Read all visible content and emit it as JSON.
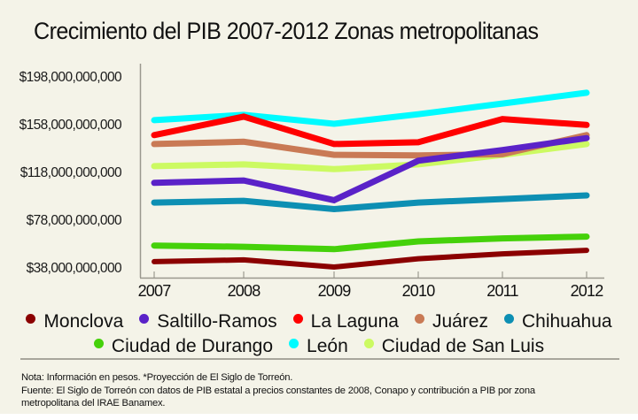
{
  "title": "Crecimiento del PIB 2007-2012  Zonas metropolitanas",
  "chart_data": {
    "type": "line",
    "title": "Crecimiento del PIB 2007-2012  Zonas metropolitanas",
    "xlabel": "",
    "ylabel": "",
    "x": [
      "2007",
      "2008",
      "2009",
      "2010",
      "2011",
      "2012"
    ],
    "yticks": [
      38000000000,
      78000000000,
      118000000000,
      158000000000,
      198000000000
    ],
    "ytick_labels": [
      "$38,000,000,000",
      "$78,000,000,000",
      "$118,000,000,000",
      "$158,000,000,000",
      "$198,000,000,000"
    ],
    "ylim": [
      36000000000,
      210000000000
    ],
    "grid": false,
    "legend_position": "bottom",
    "series": [
      {
        "name": "Monclova",
        "color": "#8b0000",
        "values": [
          42500000000,
          44000000000,
          38000000000,
          45000000000,
          49000000000,
          52000000000
        ]
      },
      {
        "name": "Saltillo-Ramos",
        "color": "#5a22c8",
        "values": [
          108500000000,
          110500000000,
          94000000000,
          127000000000,
          136000000000,
          146000000000
        ]
      },
      {
        "name": "La Laguna",
        "color": "#ff0000",
        "values": [
          148500000000,
          164000000000,
          141000000000,
          142500000000,
          162000000000,
          157000000000
        ]
      },
      {
        "name": "Juárez",
        "color": "#c97a55",
        "values": [
          141000000000,
          143000000000,
          132000000000,
          131500000000,
          132500000000,
          148500000000
        ]
      },
      {
        "name": "Chihuahua",
        "color": "#0d8fb3",
        "values": [
          92000000000,
          93500000000,
          86500000000,
          92000000000,
          95000000000,
          98000000000
        ]
      },
      {
        "name": "Ciudad de Durango",
        "color": "#45d10a",
        "values": [
          56000000000,
          55000000000,
          53000000000,
          59500000000,
          62000000000,
          63500000000
        ]
      },
      {
        "name": "León",
        "color": "#00fbff",
        "values": [
          161000000000,
          165500000000,
          158000000000,
          166000000000,
          175000000000,
          184000000000
        ]
      },
      {
        "name": "Ciudad de San Luis",
        "color": "#ccfa62",
        "values": [
          122500000000,
          124000000000,
          120000000000,
          124000000000,
          132000000000,
          141000000000
        ]
      }
    ]
  },
  "legend": {
    "row1": [
      "Monclova",
      "Saltillo-Ramos",
      "La Laguna",
      "Juárez",
      "Chihuahua"
    ],
    "row2": [
      "Ciudad de Durango",
      "León",
      "Ciudad de San Luis"
    ]
  },
  "notes": {
    "line1": "Nota: Información en pesos. *Proyección de El Siglo de Torreón.",
    "line2": "Fuente: El Siglo de Torreón con datos de PIB estatal a precios constantes de 2008, Conapo y contribución a PIB por zona",
    "line3": "metropolitana del IRAE Banamex."
  }
}
